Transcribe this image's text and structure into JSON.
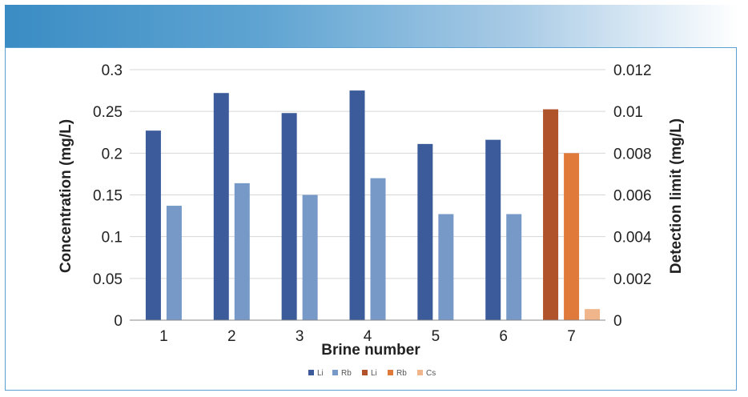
{
  "chart_data": {
    "type": "bar",
    "categories": [
      "1",
      "2",
      "3",
      "4",
      "5",
      "6",
      "7"
    ],
    "xlabel": "Brine number",
    "ylabel": "Concentration (mg/L)",
    "y2label": "Detection limit (mg/L)",
    "ylim": [
      0,
      0.3
    ],
    "y2lim": [
      0,
      0.012
    ],
    "yticks": [
      "0",
      "0.05",
      "0.1",
      "0.15",
      "0.2",
      "0.25",
      "0.3"
    ],
    "y2ticks": [
      "0",
      "0.002",
      "0.004",
      "0.006",
      "0.008",
      "0.01",
      "0.012"
    ],
    "grid": true,
    "legend_position": "bottom",
    "series": [
      {
        "name": "Li",
        "axis": "left",
        "color": "#3b5b9a",
        "values": [
          0.227,
          0.272,
          0.248,
          0.275,
          0.211,
          0.216,
          null
        ]
      },
      {
        "name": "Rb",
        "axis": "left",
        "color": "#7799c8",
        "values": [
          0.137,
          0.164,
          0.15,
          0.17,
          0.127,
          0.127,
          null
        ]
      },
      {
        "name": "Li",
        "axis": "right",
        "color": "#b0532a",
        "values": [
          null,
          null,
          null,
          null,
          null,
          null,
          0.0101
        ]
      },
      {
        "name": "Rb",
        "axis": "right",
        "color": "#e07a3a",
        "values": [
          null,
          null,
          null,
          null,
          null,
          null,
          0.008
        ]
      },
      {
        "name": "Cs",
        "axis": "right",
        "color": "#f0b58a",
        "values": [
          null,
          null,
          null,
          null,
          null,
          null,
          0.00053
        ]
      }
    ]
  }
}
